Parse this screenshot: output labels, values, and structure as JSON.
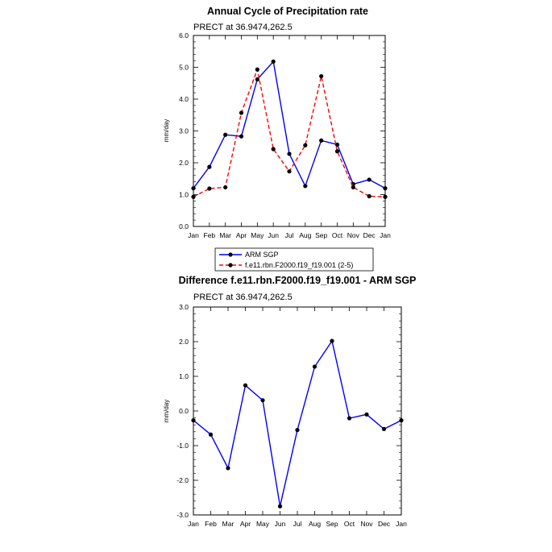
{
  "chart_data": [
    {
      "type": "line",
      "title": "Annual Cycle of Precipitation rate",
      "subtitle": "PRECT at 36.9474,262.5",
      "xlabel": "",
      "ylabel": "mm/day",
      "categories": [
        "Jan",
        "Feb",
        "Mar",
        "Apr",
        "May",
        "Jun",
        "Jul",
        "Aug",
        "Sep",
        "Oct",
        "Nov",
        "Dec",
        "Jan"
      ],
      "ylim": [
        0,
        6
      ],
      "yticks": [
        "0.0",
        "1.0",
        "2.0",
        "3.0",
        "4.0",
        "5.0",
        "6.0"
      ],
      "grid": false,
      "series": [
        {
          "name": "ARM SGP",
          "color": "#0000ff",
          "dash": "solid",
          "values": [
            1.2,
            1.87,
            2.88,
            2.83,
            4.62,
            5.18,
            2.28,
            1.27,
            2.7,
            2.57,
            1.33,
            1.47,
            1.2
          ]
        },
        {
          "name": "f.e11.rbn.F2000.f19_f19.001 (2-5)",
          "color": "#ff0000",
          "dash": "dashed",
          "values": [
            0.93,
            1.19,
            1.23,
            3.57,
            4.93,
            2.43,
            1.73,
            2.55,
            4.72,
            2.36,
            1.23,
            0.95,
            0.93
          ]
        }
      ],
      "legend_position": "bottom"
    },
    {
      "type": "line",
      "title": "Difference f.e11.rbn.F2000.f19_f19.001 - ARM SGP",
      "subtitle": "PRECT at 36.9474,262.5",
      "xlabel": "",
      "ylabel": "mm/day",
      "categories": [
        "Jan",
        "Feb",
        "Mar",
        "Apr",
        "May",
        "Jun",
        "Jul",
        "Aug",
        "Sep",
        "Oct",
        "Nov",
        "Dec",
        "Jan"
      ],
      "ylim": [
        -3,
        3
      ],
      "yticks": [
        "-3.0",
        "-2.0",
        "-1.0",
        "0.0",
        "1.0",
        "2.0",
        "3.0"
      ],
      "grid": false,
      "series": [
        {
          "name": "Difference",
          "color": "#0000ff",
          "dash": "solid",
          "values": [
            -0.27,
            -0.68,
            -1.65,
            0.74,
            0.31,
            -2.75,
            -0.55,
            1.28,
            2.02,
            -0.21,
            -0.1,
            -0.52,
            -0.27
          ]
        }
      ]
    }
  ]
}
